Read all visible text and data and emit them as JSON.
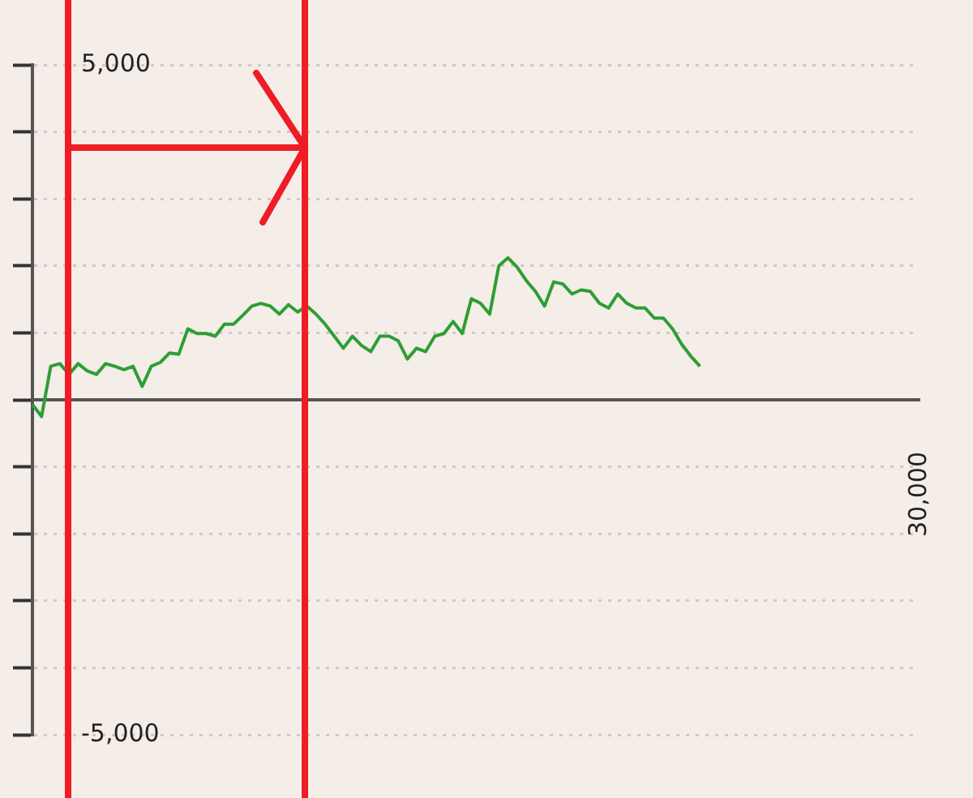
{
  "chart_data": {
    "type": "line",
    "categories": [
      null,
      null,
      null,
      null,
      null,
      null,
      null,
      null,
      null,
      null,
      null,
      null,
      null,
      null,
      null,
      null,
      null,
      null,
      null,
      null,
      null,
      null,
      null,
      null,
      null,
      null,
      null,
      null,
      null,
      null,
      null,
      null,
      null,
      null,
      null,
      null,
      null,
      null,
      null,
      null,
      null,
      null,
      null,
      null,
      null,
      null,
      null,
      null,
      null,
      null,
      null,
      null,
      null,
      null,
      null,
      null,
      null,
      null,
      null,
      null,
      null,
      null,
      null,
      null,
      null,
      null,
      null,
      null,
      null,
      null,
      null,
      null,
      null,
      null,
      null,
      null,
      null,
      null,
      null,
      null,
      null,
      null,
      null,
      null,
      null,
      null,
      null,
      null,
      null,
      null,
      null,
      null,
      null,
      null,
      null,
      null,
      null,
      null
    ],
    "series": [
      {
        "color": "#2e9e34",
        "values": [
          -70,
          -250,
          500,
          540,
          380,
          540,
          430,
          380,
          540,
          500,
          450,
          500,
          200,
          500,
          560,
          700,
          680,
          1060,
          990,
          990,
          950,
          1130,
          1130,
          1260,
          1400,
          1440,
          1400,
          1280,
          1420,
          1310,
          1400,
          1280,
          1130,
          950,
          770,
          950,
          810,
          720,
          950,
          950,
          880,
          610,
          770,
          720,
          950,
          990,
          1170,
          990,
          1510,
          1440,
          1280,
          2000,
          2120,
          1980,
          1780,
          1620,
          1400,
          1760,
          1730,
          1580,
          1640,
          1620,
          1440,
          1370,
          1580,
          1440,
          1370,
          1370,
          1220,
          1220,
          1060,
          830,
          650,
          500,
          null,
          null,
          null,
          null,
          null,
          null,
          null,
          null,
          null,
          null,
          null,
          null,
          null,
          null,
          null,
          null,
          null,
          null,
          null,
          null,
          null,
          null,
          null,
          null
        ]
      }
    ],
    "ylim": [
      -5000,
      5000
    ],
    "yticks": [
      {
        "value": -5000,
        "label": "-5,000"
      },
      {
        "value": -4000,
        "label": null
      },
      {
        "value": -3000,
        "label": null
      },
      {
        "value": -2000,
        "label": null
      },
      {
        "value": -1000,
        "label": null
      },
      {
        "value": 0,
        "label": null
      },
      {
        "value": 1000,
        "label": null
      },
      {
        "value": 2000,
        "label": null
      },
      {
        "value": 3000,
        "label": null
      },
      {
        "value": 4000,
        "label": null
      },
      {
        "value": 5000,
        "label": "5,000"
      }
    ],
    "annotations": [
      "30,000"
    ],
    "grid": "y",
    "legend": false,
    "marker": "none",
    "line_style": "solid"
  }
}
